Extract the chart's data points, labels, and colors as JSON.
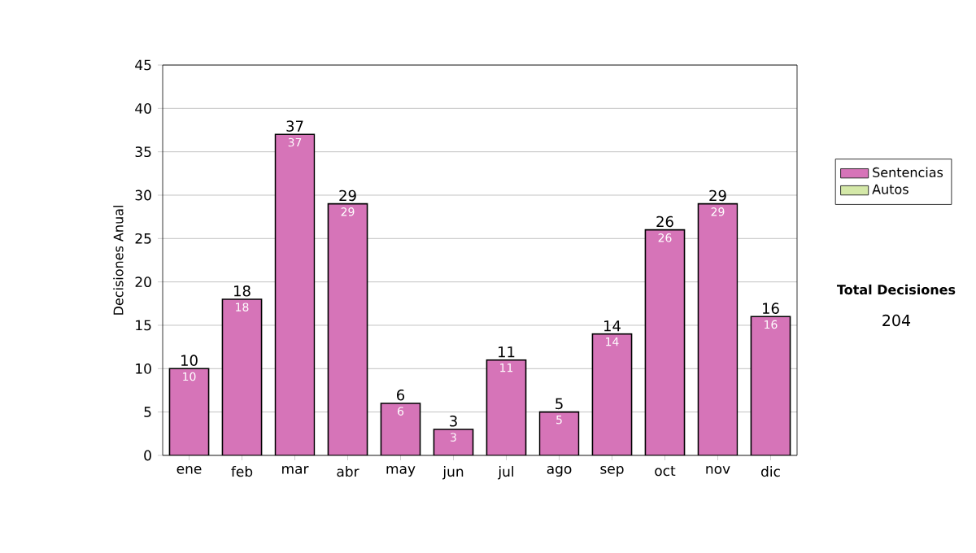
{
  "chart_data": {
    "type": "bar",
    "ylabel": "Decisiones Anual",
    "categories": [
      "ene",
      "feb",
      "mar",
      "abr",
      "may",
      "jun",
      "jul",
      "ago",
      "sep",
      "oct",
      "nov",
      "dic"
    ],
    "series": [
      {
        "name": "Sentencias",
        "color": "#d674b8",
        "values": [
          10,
          18,
          37,
          29,
          6,
          3,
          11,
          5,
          14,
          26,
          29,
          16
        ]
      },
      {
        "name": "Autos",
        "color": "#d4e8a8",
        "values": [
          null,
          null,
          null,
          null,
          null,
          null,
          null,
          null,
          null,
          null,
          null,
          null
        ]
      }
    ],
    "stacked": true,
    "data_labels": true,
    "totals": [
      "10",
      "18",
      "37",
      "29",
      "6",
      "3",
      "11",
      "5",
      "14",
      "26",
      "29",
      "16"
    ],
    "ylim": [
      0,
      45
    ],
    "yticks": [
      0,
      5,
      10,
      15,
      20,
      25,
      30,
      35,
      40,
      45
    ],
    "grid": "y",
    "legend": "right",
    "annotations": [
      "Total Decisiones",
      "204"
    ]
  }
}
